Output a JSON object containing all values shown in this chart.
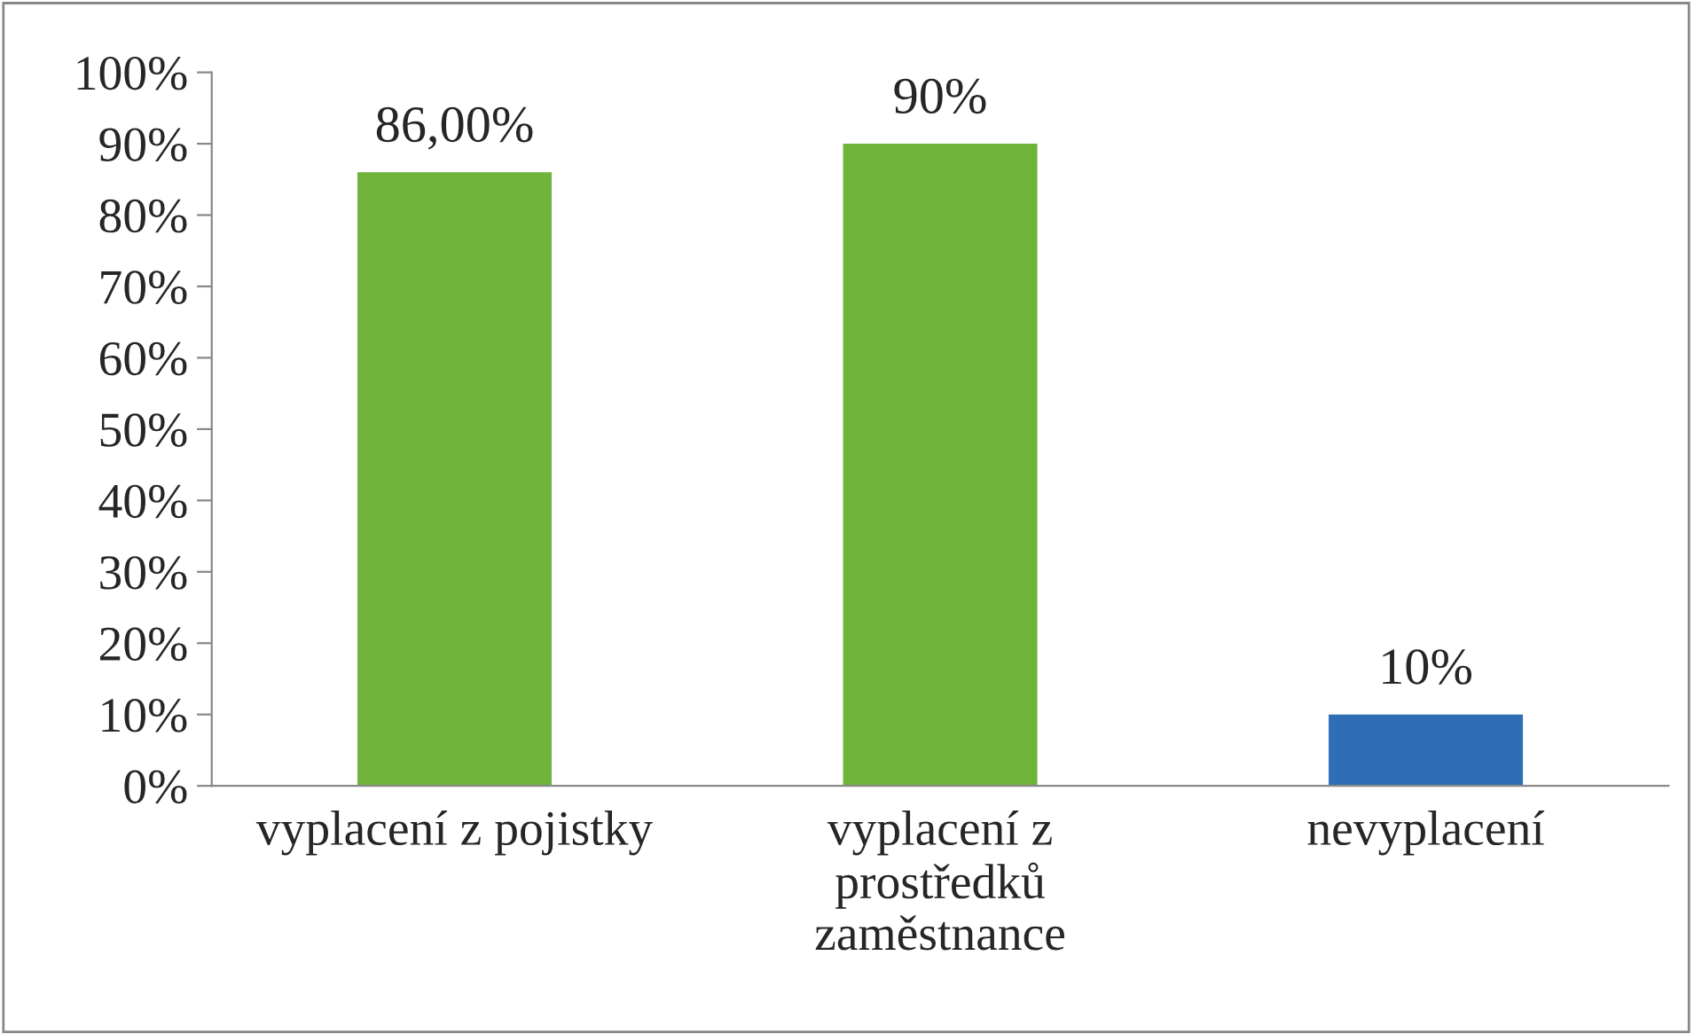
{
  "chart_data": {
    "type": "bar",
    "categories": [
      "vyplacení z pojistky",
      "vyplacení z\nprostředků\nzaměstnance",
      "nevyplacení"
    ],
    "values": [
      86,
      90,
      10
    ],
    "colors": [
      "#6fb33a",
      "#6fb33a",
      "#2f6db5"
    ],
    "value_labels": [
      "86,00%",
      "90%",
      "10%"
    ],
    "ylim": [
      0,
      100
    ],
    "yticks": [
      {
        "value": 0,
        "label": "0%"
      },
      {
        "value": 10,
        "label": "10%"
      },
      {
        "value": 20,
        "label": "20%"
      },
      {
        "value": 30,
        "label": "30%"
      },
      {
        "value": 40,
        "label": "40%"
      },
      {
        "value": 50,
        "label": "50%"
      },
      {
        "value": 60,
        "label": "60%"
      },
      {
        "value": 70,
        "label": "70%"
      },
      {
        "value": 80,
        "label": "80%"
      },
      {
        "value": 90,
        "label": "90%"
      },
      {
        "value": 100,
        "label": "100%"
      }
    ],
    "grid": false,
    "legend": false
  }
}
